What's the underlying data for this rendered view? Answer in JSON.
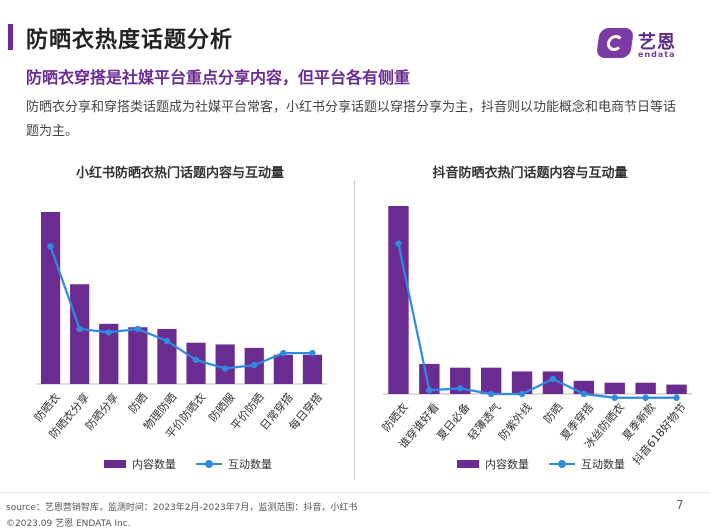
{
  "header": {
    "title": "防晒衣热度话题分析",
    "subtitle": "防晒衣穿搭是社媒平台重点分享内容，但平台各有侧重",
    "description": "防晒衣分享和穿搭类话题成为社媒平台常客，小红书分享话题以穿搭分享为主，抖音则以功能概念和电商节日等话题为主。"
  },
  "logo": {
    "cn": "艺恩",
    "en": "endata"
  },
  "colors": {
    "accent": "#6a2c91",
    "bar": "#6a2c91",
    "line": "#2e8be0"
  },
  "legend": {
    "bar_label": "内容数量",
    "line_label": "互动数量"
  },
  "chart_data": [
    {
      "type": "bar",
      "title": "小红书防晒衣热门话题内容与互动量",
      "categories": [
        "防晒衣",
        "防晒衣分享",
        "防晒分享",
        "防晒",
        "物理防晒",
        "平价防晒衣",
        "防晒服",
        "平价防晒",
        "日常穿搭",
        "每日穿搭"
      ],
      "series": [
        {
          "name": "内容数量",
          "type": "bar",
          "values": [
            100,
            58,
            35,
            33,
            32,
            24,
            23,
            21,
            17,
            17
          ]
        },
        {
          "name": "互动数量",
          "type": "line",
          "values": [
            80,
            32,
            30,
            32,
            25,
            14,
            9,
            11,
            18,
            18
          ]
        }
      ],
      "ylim": [
        0,
        100
      ]
    },
    {
      "type": "bar",
      "title": "抖音防晒衣热门话题内容与互动量",
      "categories": [
        "防晒衣",
        "谁穿谁好看",
        "夏日必备",
        "轻薄透气",
        "防紫外线",
        "防晒",
        "夏季穿搭",
        "冰丝防晒衣",
        "夏季新款",
        "抖音618好物节"
      ],
      "series": [
        {
          "name": "内容数量",
          "type": "bar",
          "values": [
            100,
            16,
            14,
            14,
            12,
            12,
            7,
            6,
            6,
            5
          ]
        },
        {
          "name": "互动数量",
          "type": "line",
          "values": [
            80,
            2,
            3,
            0,
            0,
            8,
            0,
            -2,
            -2,
            -2
          ]
        }
      ],
      "ylim": [
        0,
        100
      ]
    }
  ],
  "footer": {
    "source": "source：艺恩营销智库，监测时间：2023年2月-2023年7月，监测范围：抖音，小红书",
    "copyright": "©2023.09 艺恩 ENDATA Inc.",
    "page": "7"
  }
}
